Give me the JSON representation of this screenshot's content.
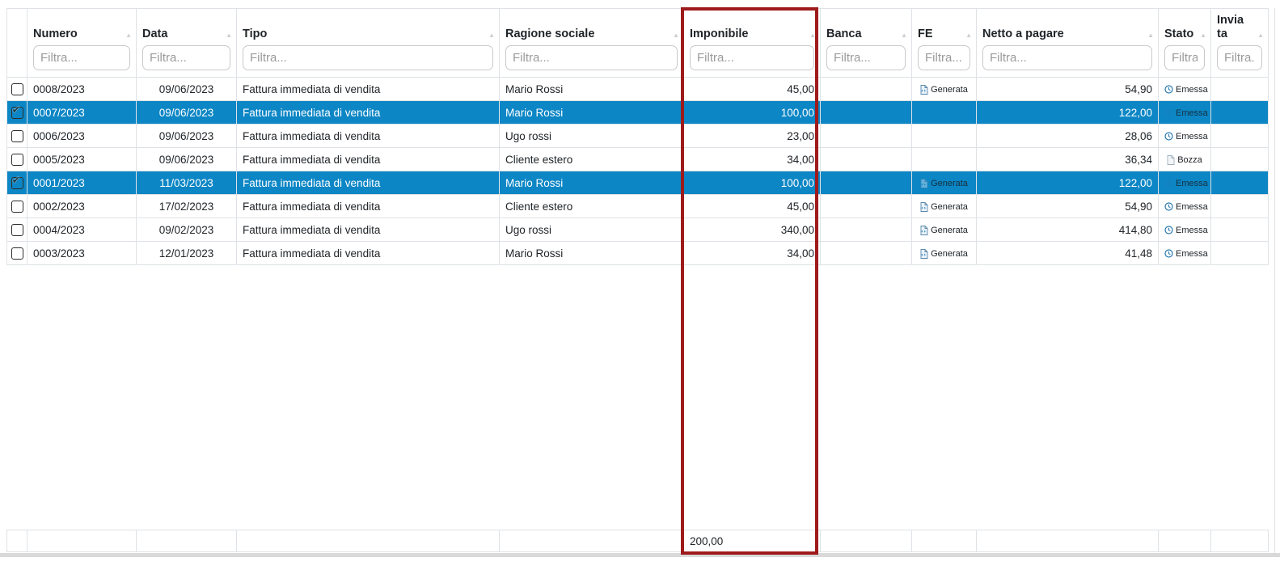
{
  "colors": {
    "selection-blue": "#0c86c5",
    "highlight-red": "#9e1b1b",
    "table-border": "#dee2e6",
    "header-text": "#212529",
    "cell-text": "#212529",
    "placeholder-gray": "#9b9b9b",
    "scrollbar-gray": "#d9d9d9",
    "status-blue": "#2779b0",
    "draft-gray": "#9fb0bd",
    "fe-icon-blue": "#2e86c1"
  },
  "icons": {
    "sort_glyph": "▲",
    "check_glyph": "✔",
    "fe_generata": "xml-document-icon",
    "stato_emessa": "clock-icon",
    "stato_bozza": "draft-page-icon"
  },
  "table": {
    "columns": [
      {
        "key": "numero",
        "label": "Numero",
        "placeholder": "Filtra..."
      },
      {
        "key": "data",
        "label": "Data",
        "placeholder": "Filtra..."
      },
      {
        "key": "tipo",
        "label": "Tipo",
        "placeholder": "Filtra..."
      },
      {
        "key": "ragione_sociale",
        "label": "Ragione sociale",
        "placeholder": "Filtra..."
      },
      {
        "key": "imponibile",
        "label": "Imponibile",
        "placeholder": "Filtra..."
      },
      {
        "key": "banca",
        "label": "Banca",
        "placeholder": "Filtra..."
      },
      {
        "key": "fe",
        "label": "FE",
        "placeholder": "Filtra..."
      },
      {
        "key": "netto_a_pagare",
        "label": "Netto a pagare",
        "placeholder": "Filtra..."
      },
      {
        "key": "stato",
        "label": "Stato",
        "placeholder": "Filtra..."
      },
      {
        "key": "inviata",
        "label": "Inviata",
        "placeholder": "Filtra..."
      }
    ],
    "rows": [
      {
        "numero": "0008/2023",
        "data": "09/06/2023",
        "tipo": "Fattura immediata di vendita",
        "ragione_sociale": "Mario Rossi",
        "imponibile": "45,00",
        "banca": "",
        "fe": "Generata",
        "netto_a_pagare": "54,90",
        "stato": "Emessa",
        "inviata": "",
        "selected": false
      },
      {
        "numero": "0007/2023",
        "data": "09/06/2023",
        "tipo": "Fattura immediata di vendita",
        "ragione_sociale": "Mario Rossi",
        "imponibile": "100,00",
        "banca": "",
        "fe": "",
        "netto_a_pagare": "122,00",
        "stato": "Emessa",
        "inviata": "",
        "selected": true
      },
      {
        "numero": "0006/2023",
        "data": "09/06/2023",
        "tipo": "Fattura immediata di vendita",
        "ragione_sociale": "Ugo rossi",
        "imponibile": "23,00",
        "banca": "",
        "fe": "",
        "netto_a_pagare": "28,06",
        "stato": "Emessa",
        "inviata": "",
        "selected": false
      },
      {
        "numero": "0005/2023",
        "data": "09/06/2023",
        "tipo": "Fattura immediata di vendita",
        "ragione_sociale": "Cliente estero",
        "imponibile": "34,00",
        "banca": "",
        "fe": "",
        "netto_a_pagare": "36,34",
        "stato": "Bozza",
        "inviata": "",
        "selected": false
      },
      {
        "numero": "0001/2023",
        "data": "11/03/2023",
        "tipo": "Fattura immediata di vendita",
        "ragione_sociale": "Mario Rossi",
        "imponibile": "100,00",
        "banca": "",
        "fe": "Generata",
        "netto_a_pagare": "122,00",
        "stato": "Emessa",
        "inviata": "",
        "selected": true
      },
      {
        "numero": "0002/2023",
        "data": "17/02/2023",
        "tipo": "Fattura immediata di vendita",
        "ragione_sociale": "Cliente estero",
        "imponibile": "45,00",
        "banca": "",
        "fe": "Generata",
        "netto_a_pagare": "54,90",
        "stato": "Emessa",
        "inviata": "",
        "selected": false
      },
      {
        "numero": "0004/2023",
        "data": "09/02/2023",
        "tipo": "Fattura immediata di vendita",
        "ragione_sociale": "Ugo rossi",
        "imponibile": "340,00",
        "banca": "",
        "fe": "Generata",
        "netto_a_pagare": "414,80",
        "stato": "Emessa",
        "inviata": "",
        "selected": false
      },
      {
        "numero": "0003/2023",
        "data": "12/01/2023",
        "tipo": "Fattura immediata di vendita",
        "ragione_sociale": "Mario Rossi",
        "imponibile": "34,00",
        "banca": "",
        "fe": "Generata",
        "netto_a_pagare": "41,48",
        "stato": "Emessa",
        "inviata": "",
        "selected": false
      }
    ],
    "footer": {
      "imponibile_total": "200,00"
    }
  }
}
